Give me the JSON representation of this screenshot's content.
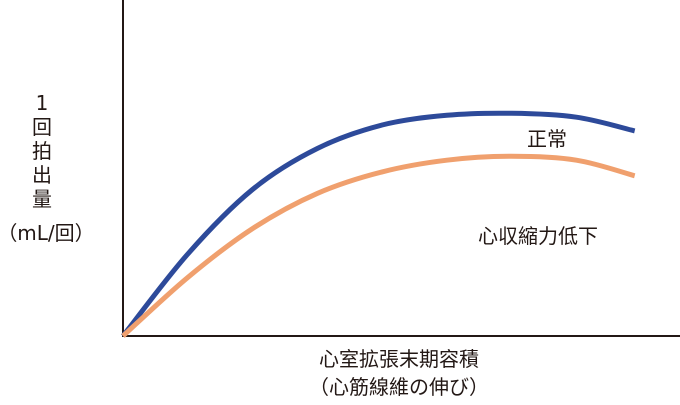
{
  "chart_data": {
    "type": "line",
    "title": "",
    "xlabel": "心室拡張末期容積",
    "xlabel_sub": "（心筋線維の伸び）",
    "ylabel_chars": [
      "1",
      "回",
      "拍",
      "出",
      "量"
    ],
    "ylabel_unit": "（mL/回）",
    "x": [
      0,
      10,
      20,
      30,
      40,
      50,
      60,
      70,
      79
    ],
    "series": [
      {
        "name": "正常",
        "color": "#2d4a9a",
        "values": [
          0,
          42,
          75,
          96,
          108,
          113,
          114,
          112,
          105
        ]
      },
      {
        "name": "心収縮力低下",
        "color": "#f0a06e",
        "values": [
          0,
          30,
          55,
          73,
          84,
          90,
          92,
          90,
          82
        ]
      }
    ],
    "xlim": [
      0,
      86
    ],
    "ylim": [
      0,
      172
    ],
    "grid": false,
    "legend": "inline-right"
  }
}
